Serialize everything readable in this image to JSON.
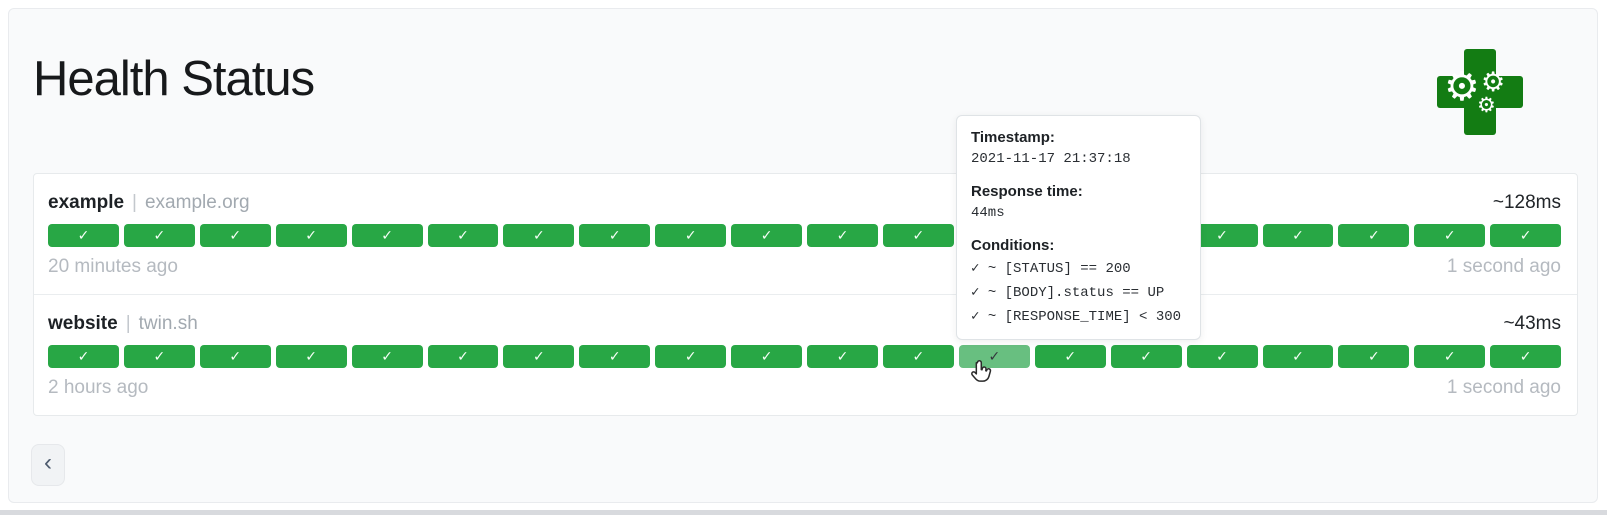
{
  "header": {
    "title": "Health Status"
  },
  "logo": {
    "icon": "green-cross-gears-logo"
  },
  "icons": {
    "check": "✓",
    "gear": "⚙",
    "chevron_left": "‹"
  },
  "colors": {
    "success": "#28a745",
    "success_hover": "#68bf80",
    "logo_green": "#137c13"
  },
  "services": [
    {
      "name": "example",
      "separator": "|",
      "group": "example.org",
      "avg_response_time": "~128ms",
      "oldest_result": "20 minutes ago",
      "newest_result": "1 second ago",
      "hovered_index": null,
      "history": [
        "success",
        "success",
        "success",
        "success",
        "success",
        "success",
        "success",
        "success",
        "success",
        "success",
        "success",
        "success",
        "success",
        "success",
        "success",
        "success",
        "success",
        "success",
        "success",
        "success"
      ]
    },
    {
      "name": "website",
      "separator": "|",
      "group": "twin.sh",
      "avg_response_time": "~43ms",
      "oldest_result": "2 hours ago",
      "newest_result": "1 second ago",
      "hovered_index": 12,
      "history": [
        "success",
        "success",
        "success",
        "success",
        "success",
        "success",
        "success",
        "success",
        "success",
        "success",
        "success",
        "success",
        "success",
        "success",
        "success",
        "success",
        "success",
        "success",
        "success",
        "success"
      ]
    }
  ],
  "tooltip": {
    "timestamp_label": "Timestamp:",
    "timestamp": "2021-11-17 21:37:18",
    "response_time_label": "Response time:",
    "response_time": "44ms",
    "conditions_label": "Conditions:",
    "conditions": [
      "✓ ~ [STATUS] == 200",
      "✓ ~ [BODY].status == UP",
      "✓ ~ [RESPONSE_TIME] < 300"
    ]
  },
  "pagination": {
    "previous": "‹"
  }
}
